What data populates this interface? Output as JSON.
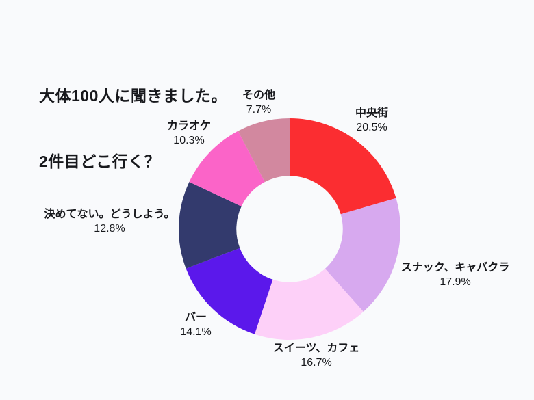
{
  "page": {
    "background": "#f9fafc",
    "text_color": "#17181c"
  },
  "title": {
    "line1": "大体100人に聞きました。",
    "line2": "2件目どこ行く？"
  },
  "chart_data": {
    "type": "pie",
    "subtype": "donut",
    "title": "大体100人に聞きました。 2件目どこ行く？",
    "start_angle_deg": 0,
    "direction": "clockwise",
    "inner_radius_ratio": 0.48,
    "unit": "%",
    "total": 100,
    "legend": "none",
    "labels_position": "outside",
    "segments": [
      {
        "label": "中央街",
        "value": 20.5,
        "pct_label": "20.5%",
        "color": "#fb2d31"
      },
      {
        "label": "スナック、キャバクラ",
        "value": 17.9,
        "pct_label": "17.9%",
        "color": "#d7a9ef"
      },
      {
        "label": "スイーツ、カフェ",
        "value": 16.7,
        "pct_label": "16.7%",
        "color": "#fdd0f8"
      },
      {
        "label": "バー",
        "value": 14.1,
        "pct_label": "14.1%",
        "color": "#5b18eb"
      },
      {
        "label": "決めてない。どうしよう。",
        "value": 12.8,
        "pct_label": "12.8%",
        "color": "#333a6d"
      },
      {
        "label": "カラオケ",
        "value": 10.3,
        "pct_label": "10.3%",
        "color": "#fb64c8"
      },
      {
        "label": "その他",
        "value": 7.7,
        "pct_label": "7.7%",
        "color": "#d2889f"
      }
    ]
  }
}
